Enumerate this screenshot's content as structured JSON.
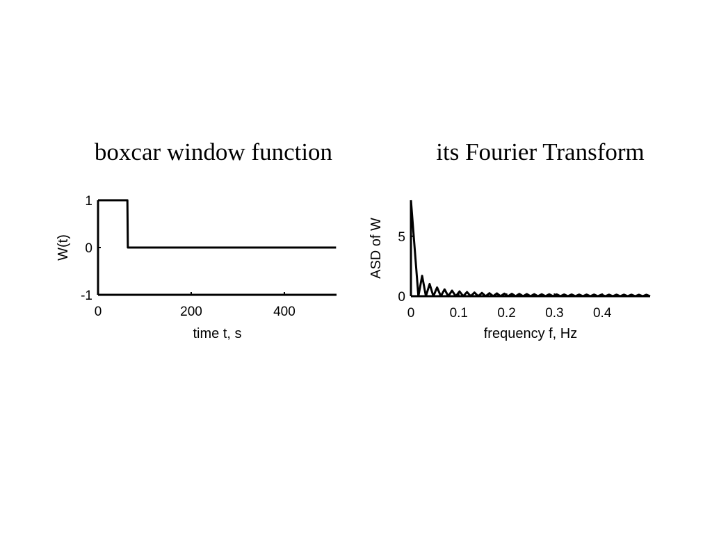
{
  "chart_data": [
    {
      "type": "line",
      "title": "boxcar window function",
      "xlabel": "time t, s",
      "ylabel": "W(t)",
      "x": [
        0,
        63,
        64,
        511
      ],
      "values": [
        1,
        1,
        0,
        0
      ],
      "color": "#000000",
      "xlim": [
        0,
        512
      ],
      "xticks": [
        0,
        200,
        400
      ],
      "ylim": [
        -1,
        1
      ],
      "yticks": [
        -1,
        0,
        1
      ],
      "grid": false
    },
    {
      "type": "line",
      "title": "its Fourier Transform",
      "xlabel": "frequency f, Hz",
      "ylabel": "ASD of W",
      "x": [
        0,
        0.0156,
        0.0234,
        0.0313,
        0.0391,
        0.0469,
        0.0547,
        0.0625,
        0.0703,
        0.0781,
        0.0859,
        0.0938,
        0.1016,
        0.1094,
        0.1172,
        0.125,
        0.1328,
        0.1406,
        0.1484,
        0.1563,
        0.1641,
        0.1719,
        0.1797,
        0.1875,
        0.1953,
        0.2031,
        0.2109,
        0.2188,
        0.2266,
        0.2344,
        0.2422,
        0.25,
        0.2578,
        0.2656,
        0.2734,
        0.2813,
        0.2891,
        0.2969,
        0.3047,
        0.3125,
        0.3203,
        0.3281,
        0.3359,
        0.3438,
        0.3516,
        0.3594,
        0.3672,
        0.375,
        0.3828,
        0.3906,
        0.3984,
        0.4063,
        0.4141,
        0.4219,
        0.4297,
        0.4375,
        0.4453,
        0.4531,
        0.4609,
        0.4688,
        0.4766,
        0.4844,
        0.4922,
        0.5
      ],
      "values": [
        8,
        0,
        1.699,
        0,
        1.021,
        0,
        0.731,
        0,
        0.571,
        0,
        0.469,
        0,
        0.398,
        0,
        0.347,
        0,
        0.308,
        0,
        0.278,
        0,
        0.254,
        0,
        0.234,
        0,
        0.217,
        0,
        0.203,
        0,
        0.191,
        0,
        0.181,
        0,
        0.173,
        0,
        0.165,
        0,
        0.159,
        0,
        0.153,
        0,
        0.148,
        0,
        0.144,
        0,
        0.14,
        0,
        0.137,
        0,
        0.134,
        0,
        0.132,
        0,
        0.13,
        0,
        0.128,
        0,
        0.127,
        0,
        0.126,
        0,
        0.125,
        0,
        0.125,
        0
      ],
      "color": "#000000",
      "xlim": [
        0,
        0.5
      ],
      "xticks": [
        0,
        0.1,
        0.2,
        0.3,
        0.4
      ],
      "ylim": [
        0,
        8
      ],
      "yticks": [
        0,
        5
      ],
      "grid": false
    }
  ]
}
